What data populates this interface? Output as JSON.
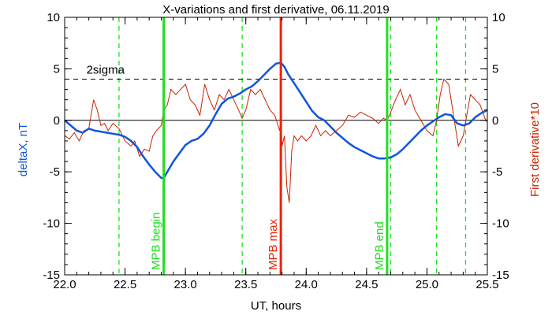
{
  "chart_data": {
    "type": "line",
    "title": "X-variations and first derivative, 06.11.2019",
    "xlabel": "UT, hours",
    "ylabel_left": "deltaX, nT",
    "ylabel_right": "First derivative*10",
    "xlim": [
      22.0,
      25.5
    ],
    "ylim": [
      -15,
      10
    ],
    "x_ticks": [
      "22.0",
      "22.5",
      "23.0",
      "23.5",
      "24.0",
      "24.5",
      "25.0",
      "25.5"
    ],
    "y_ticks": [
      "10",
      "5",
      "0",
      "-5",
      "-10",
      "-15"
    ],
    "threshold": {
      "label": "2sigma",
      "value": 4.0
    },
    "markers": [
      {
        "label": "MPB begin",
        "x": 22.82,
        "color": "#22dd22"
      },
      {
        "label": "MPB max",
        "x": 23.79,
        "color": "#ee2200"
      },
      {
        "label": "MPB end",
        "x": 24.67,
        "color": "#22dd22"
      }
    ],
    "dashed_verticals": [
      22.45,
      23.47,
      24.7,
      25.08,
      25.32
    ],
    "series": [
      {
        "color": "#1155dd",
        "x": [
          22.0,
          22.05,
          22.1,
          22.15,
          22.2,
          22.25,
          22.3,
          22.35,
          22.4,
          22.45,
          22.5,
          22.55,
          22.6,
          22.65,
          22.7,
          22.75,
          22.8,
          22.82,
          22.85,
          22.9,
          22.95,
          23.0,
          23.05,
          23.1,
          23.15,
          23.2,
          23.25,
          23.3,
          23.35,
          23.4,
          23.45,
          23.5,
          23.55,
          23.6,
          23.65,
          23.7,
          23.75,
          23.79,
          23.82,
          23.85,
          23.9,
          23.95,
          24.0,
          24.05,
          24.1,
          24.15,
          24.2,
          24.25,
          24.3,
          24.35,
          24.4,
          24.45,
          24.5,
          24.55,
          24.6,
          24.65,
          24.7,
          24.75,
          24.8,
          24.85,
          24.9,
          24.95,
          25.0,
          25.05,
          25.1,
          25.15,
          25.2,
          25.25,
          25.3,
          25.35,
          25.4,
          25.45,
          25.5
        ],
        "values": [
          0.0,
          -0.5,
          -1.0,
          -1.2,
          -0.8,
          -1.0,
          -1.1,
          -1.2,
          -1.3,
          -1.4,
          -1.6,
          -2.0,
          -2.6,
          -3.5,
          -4.3,
          -5.0,
          -5.6,
          -5.6,
          -5.0,
          -4.0,
          -3.2,
          -2.4,
          -2.0,
          -1.8,
          -1.3,
          -0.5,
          0.6,
          1.6,
          2.1,
          2.3,
          2.6,
          3.0,
          3.3,
          3.8,
          4.4,
          5.0,
          5.5,
          5.6,
          5.2,
          4.5,
          3.6,
          2.7,
          1.8,
          0.9,
          0.3,
          0.0,
          -0.6,
          -1.2,
          -1.7,
          -2.2,
          -2.6,
          -2.9,
          -3.2,
          -3.5,
          -3.7,
          -3.7,
          -3.6,
          -3.3,
          -2.8,
          -2.2,
          -1.6,
          -1.0,
          -0.5,
          -0.1,
          0.3,
          0.6,
          0.5,
          -0.3,
          -0.5,
          -0.3,
          0.3,
          0.7,
          1.0
        ]
      },
      {
        "color": "#cc2200",
        "x": [
          22.0,
          22.04,
          22.08,
          22.12,
          22.16,
          22.2,
          22.24,
          22.27,
          22.3,
          22.33,
          22.36,
          22.4,
          22.45,
          22.5,
          22.55,
          22.58,
          22.62,
          22.66,
          22.7,
          22.73,
          22.76,
          22.8,
          22.82,
          22.85,
          22.88,
          22.92,
          22.96,
          23.0,
          23.04,
          23.08,
          23.12,
          23.16,
          23.2,
          23.24,
          23.28,
          23.32,
          23.36,
          23.4,
          23.44,
          23.47,
          23.5,
          23.54,
          23.58,
          23.62,
          23.66,
          23.7,
          23.74,
          23.78,
          23.79,
          23.8,
          23.82,
          23.84,
          23.86,
          23.88,
          23.9,
          23.93,
          23.96,
          24.0,
          24.04,
          24.08,
          24.12,
          24.16,
          24.2,
          24.25,
          24.3,
          24.35,
          24.4,
          24.45,
          24.5,
          24.55,
          24.6,
          24.64,
          24.67,
          24.7,
          24.74,
          24.78,
          24.82,
          24.86,
          24.9,
          24.95,
          25.0,
          25.05,
          25.08,
          25.11,
          25.14,
          25.18,
          25.22,
          25.26,
          25.3,
          25.33,
          25.36,
          25.4,
          25.44,
          25.48,
          25.5
        ],
        "values": [
          -1.5,
          -1.8,
          -1.2,
          -2.0,
          -1.0,
          -0.8,
          2.0,
          1.0,
          -0.5,
          -0.3,
          -1.0,
          -0.3,
          -0.8,
          -2.0,
          -2.5,
          -2.0,
          -3.5,
          -2.8,
          -3.0,
          -1.5,
          -1.0,
          -0.5,
          1.0,
          1.5,
          3.0,
          2.5,
          3.0,
          3.5,
          2.0,
          1.5,
          0.5,
          3.5,
          2.0,
          1.0,
          2.5,
          2.0,
          3.0,
          2.0,
          1.0,
          0.2,
          1.0,
          3.0,
          2.5,
          3.0,
          2.0,
          1.0,
          0.5,
          -1.0,
          0.0,
          -2.5,
          -1.5,
          -6.5,
          -8.0,
          -3.0,
          -1.5,
          -2.0,
          -1.5,
          -2.0,
          -1.5,
          -0.5,
          -1.5,
          -1.0,
          -1.5,
          -1.0,
          -0.5,
          0.5,
          0.3,
          0.8,
          0.5,
          0.2,
          -0.3,
          0.2,
          0.0,
          0.8,
          2.0,
          3.0,
          1.5,
          2.5,
          1.0,
          0.0,
          -1.0,
          -1.5,
          0.0,
          2.5,
          4.0,
          3.5,
          0.5,
          -2.5,
          -1.5,
          0.5,
          2.5,
          2.0,
          1.5,
          0.2,
          -0.2
        ]
      }
    ]
  }
}
